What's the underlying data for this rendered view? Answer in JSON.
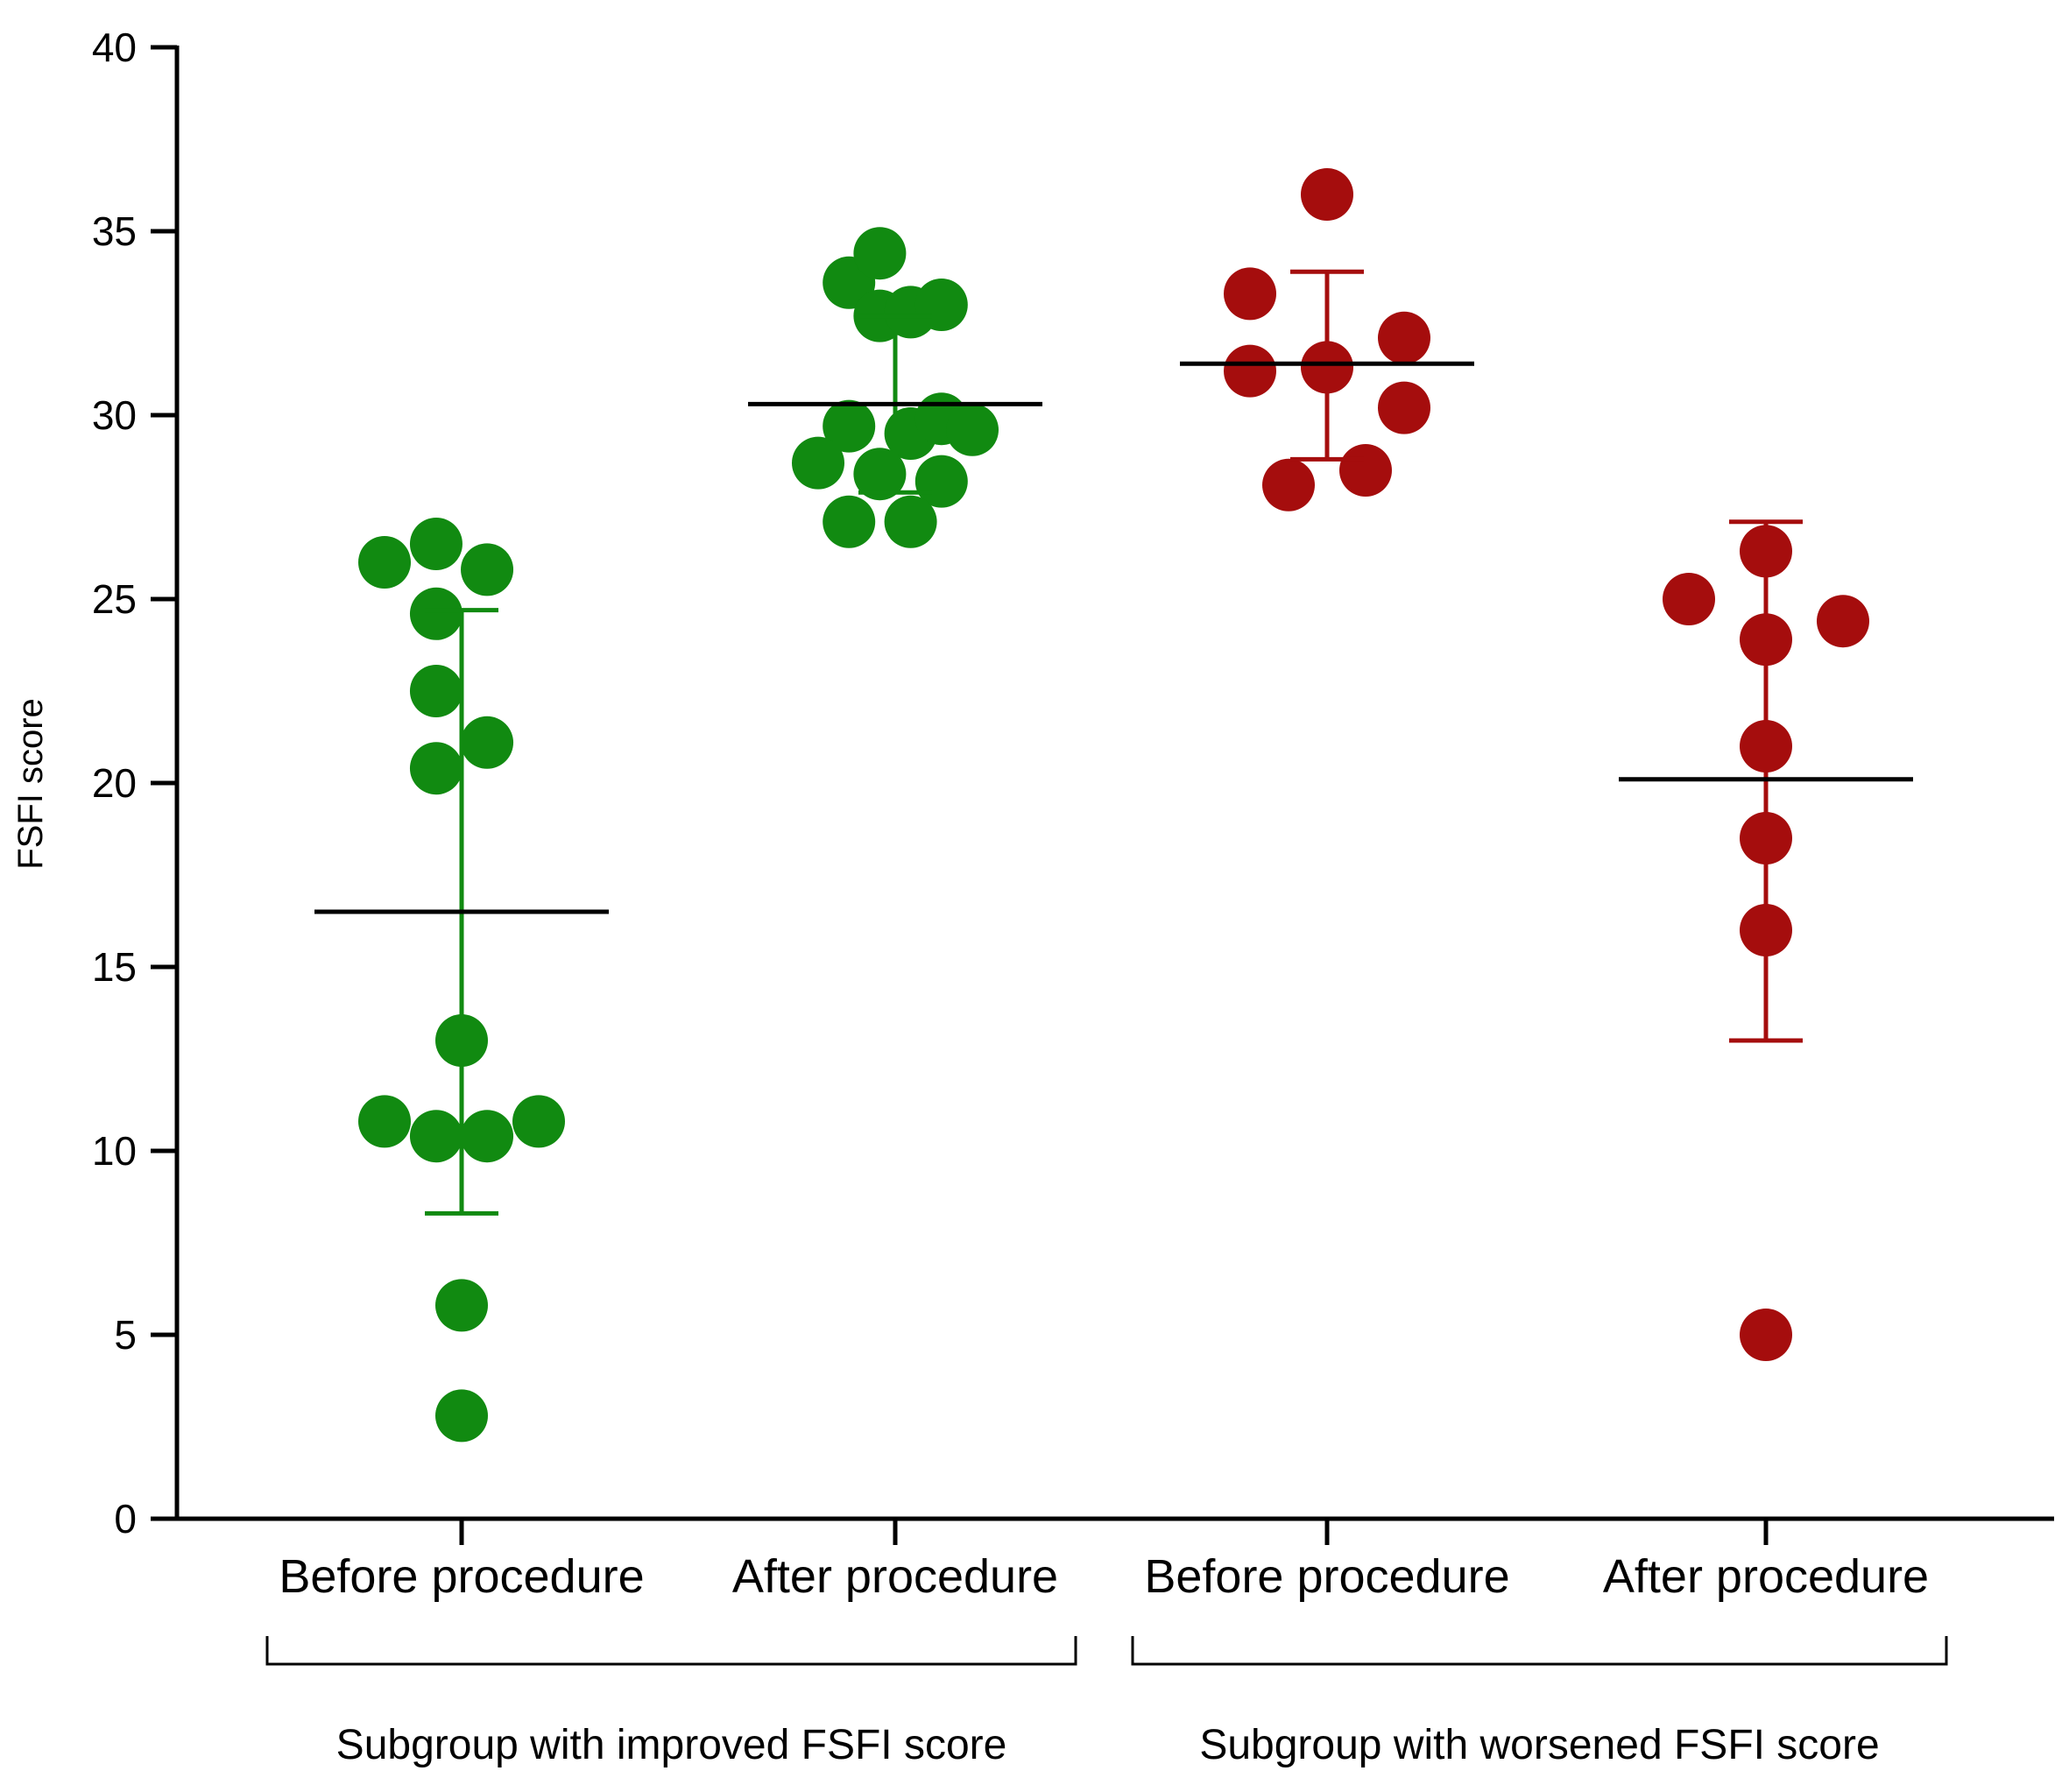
{
  "chart_data": {
    "type": "scatter",
    "title": "",
    "ylabel": "FSFI score",
    "xlabel": "",
    "ylim": [
      0,
      40
    ],
    "yticks": [
      "0",
      "5",
      "10",
      "15",
      "20",
      "25",
      "30",
      "35",
      "40"
    ],
    "grid": false,
    "legend": "none",
    "categories": [
      "Before procedure",
      "After procedure",
      "Before procedure",
      "After procedure"
    ],
    "groups": [
      {
        "label": "Subgroup with improved FSFI score",
        "categories": [
          0,
          1
        ]
      },
      {
        "label": "Subgroup with worsened FSFI score",
        "categories": [
          2,
          3
        ]
      }
    ],
    "series": [
      {
        "name": "Improved - Before procedure",
        "category": 0,
        "color": "#118a11",
        "mean": 16.5,
        "sd_low": 8.3,
        "sd_high": 24.7,
        "points": [
          {
            "offset": -1.0,
            "y": 26.0
          },
          {
            "offset": -0.33,
            "y": 26.5
          },
          {
            "offset": 0.33,
            "y": 25.8
          },
          {
            "offset": -0.33,
            "y": 24.6
          },
          {
            "offset": -0.33,
            "y": 22.5
          },
          {
            "offset": 0.33,
            "y": 21.1
          },
          {
            "offset": -0.33,
            "y": 20.4
          },
          {
            "offset": 0.0,
            "y": 13.0
          },
          {
            "offset": -1.0,
            "y": 10.8
          },
          {
            "offset": -0.33,
            "y": 10.4
          },
          {
            "offset": 0.33,
            "y": 10.4
          },
          {
            "offset": 1.0,
            "y": 10.8
          },
          {
            "offset": 0.0,
            "y": 5.8
          },
          {
            "offset": 0.0,
            "y": 2.8
          }
        ]
      },
      {
        "name": "Improved - After procedure",
        "category": 1,
        "color": "#118a11",
        "mean": 30.3,
        "sd_low": 27.9,
        "sd_high": 32.7,
        "points": [
          {
            "offset": -0.6,
            "y": 33.6
          },
          {
            "offset": -0.2,
            "y": 34.4
          },
          {
            "offset": -0.2,
            "y": 32.7
          },
          {
            "offset": 0.2,
            "y": 32.8
          },
          {
            "offset": 0.6,
            "y": 33.0
          },
          {
            "offset": -0.6,
            "y": 29.7
          },
          {
            "offset": 0.2,
            "y": 29.5
          },
          {
            "offset": 0.6,
            "y": 29.9
          },
          {
            "offset": 1.0,
            "y": 29.6
          },
          {
            "offset": -1.0,
            "y": 28.7
          },
          {
            "offset": -0.2,
            "y": 28.4
          },
          {
            "offset": 0.6,
            "y": 28.2
          },
          {
            "offset": -0.6,
            "y": 27.1
          },
          {
            "offset": 0.2,
            "y": 27.1
          }
        ]
      },
      {
        "name": "Worsened - Before procedure",
        "category": 2,
        "color": "#a50d0d",
        "mean": 31.4,
        "sd_low": 28.8,
        "sd_high": 33.9,
        "points": [
          {
            "offset": 0.0,
            "y": 36.0
          },
          {
            "offset": -1.0,
            "y": 33.3
          },
          {
            "offset": 1.0,
            "y": 32.1
          },
          {
            "offset": -1.0,
            "y": 31.2
          },
          {
            "offset": 0.0,
            "y": 31.3
          },
          {
            "offset": 1.0,
            "y": 30.2
          },
          {
            "offset": -0.5,
            "y": 28.1
          },
          {
            "offset": 0.5,
            "y": 28.5
          }
        ]
      },
      {
        "name": "Worsened - After procedure",
        "category": 3,
        "color": "#a50d0d",
        "mean": 20.1,
        "sd_low": 13.0,
        "sd_high": 27.1,
        "points": [
          {
            "offset": 0.0,
            "y": 26.3
          },
          {
            "offset": -1.0,
            "y": 25.0
          },
          {
            "offset": 1.0,
            "y": 24.4
          },
          {
            "offset": 0.0,
            "y": 23.9
          },
          {
            "offset": 0.0,
            "y": 21.0
          },
          {
            "offset": 0.0,
            "y": 18.5
          },
          {
            "offset": 0.0,
            "y": 16.0
          },
          {
            "offset": 0.0,
            "y": 5.0
          }
        ]
      }
    ]
  }
}
